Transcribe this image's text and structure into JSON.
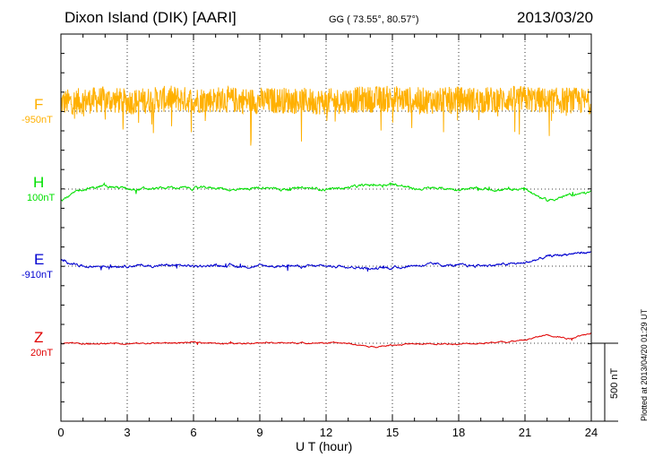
{
  "header": {
    "station": "Dixon Island (DIK)  [AARI]",
    "coords": "GG ( 73.55°,  80.57°)",
    "date": "2013/03/20"
  },
  "footer": {
    "plotted": "Plotted at 2013/04/20 01:29 UT",
    "scale_label": "500 nT"
  },
  "colors": {
    "F": "#ffb000",
    "H": "#00e000",
    "E": "#0000d0",
    "Z": "#e00000"
  },
  "chart_data": {
    "type": "line",
    "xlabel": "U T (hour)",
    "xlim": [
      0,
      24
    ],
    "x_ticks": [
      "0",
      "3",
      "6",
      "9",
      "12",
      "15",
      "18",
      "21",
      "24"
    ],
    "grid": true,
    "scale_bar_nT": 500,
    "channels": [
      {
        "name": "F",
        "baseline_label": "-950nT",
        "baseline_nT": -950
      },
      {
        "name": "H",
        "baseline_label": "100nT",
        "baseline_nT": 100
      },
      {
        "name": "E",
        "baseline_label": "-910nT",
        "baseline_nT": -910
      },
      {
        "name": "Z",
        "baseline_label": "20nT",
        "baseline_nT": 20
      }
    ],
    "hourly": {
      "hours": [
        0,
        1,
        2,
        3,
        4,
        5,
        6,
        7,
        8,
        9,
        10,
        11,
        12,
        13,
        14,
        15,
        16,
        17,
        18,
        19,
        20,
        21,
        22,
        23,
        24
      ],
      "F": [
        -895,
        -885,
        -875,
        -890,
        -880,
        -870,
        -880,
        -875,
        -880,
        -885,
        -880,
        -885,
        -890,
        -880,
        -875,
        -870,
        -880,
        -885,
        -875,
        -880,
        -875,
        -870,
        -885,
        -880,
        -890
      ],
      "H": [
        30,
        100,
        120,
        105,
        100,
        110,
        105,
        110,
        90,
        110,
        100,
        105,
        100,
        110,
        125,
        135,
        100,
        105,
        100,
        100,
        95,
        100,
        25,
        60,
        80
      ],
      "E": [
        -870,
        -910,
        -910,
        -905,
        -908,
        -905,
        -910,
        -905,
        -910,
        -910,
        -908,
        -912,
        -910,
        -910,
        -925,
        -920,
        -905,
        -900,
        -908,
        -905,
        -900,
        -890,
        -850,
        -830,
        -820
      ],
      "Z": [
        20,
        15,
        20,
        18,
        20,
        22,
        25,
        20,
        22,
        22,
        22,
        22,
        22,
        20,
        -5,
        10,
        15,
        15,
        15,
        20,
        28,
        40,
        75,
        50,
        90
      ]
    }
  }
}
